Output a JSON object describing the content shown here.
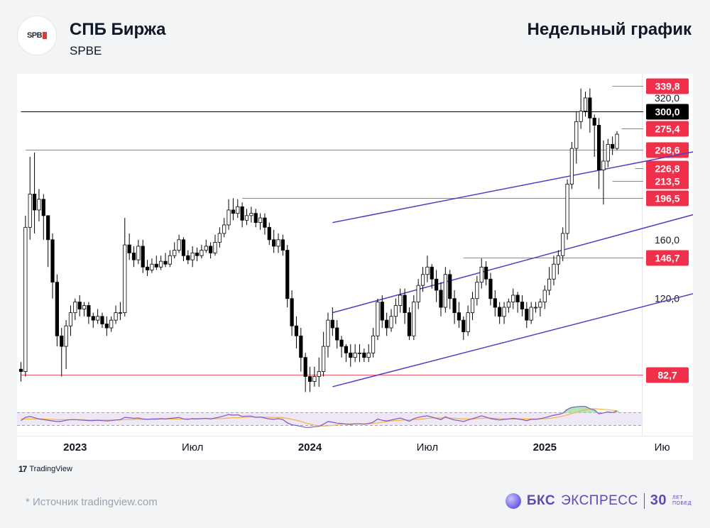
{
  "header": {
    "company": "СПБ Биржа",
    "ticker": "SPBE",
    "period": "Недельный график",
    "logo_text": "SPB"
  },
  "footer": {
    "tv_brand": "TradingView",
    "tv_mark": "17",
    "source": "*  Источник tradingview.com",
    "bcs_bold": "БКС",
    "bcs_rest": "ЭКСПРЕСС",
    "bcs_years": "30",
    "bcs_years_caption_1": "ЛЕТ",
    "bcs_years_caption_2": "ПОБЕД"
  },
  "colors": {
    "level_line": "#f05b70",
    "level_label_bg": "#f0304a",
    "channel": "#5b39c8",
    "rsi_line": "#7e57c2",
    "rsi_ma": "#f5b342",
    "rsi_band": "#ede7f6",
    "candle_up_fill": "#ffffff",
    "candle_down_fill": "#000000"
  },
  "chart_data": {
    "type": "candlestick",
    "yscale": "log",
    "ylim": [
      72,
      360
    ],
    "x_axis_labels": [
      {
        "text": "2023",
        "bold": true,
        "week": 12
      },
      {
        "text": "Июл",
        "bold": false,
        "week": 38
      },
      {
        "text": "2024",
        "bold": true,
        "week": 64
      },
      {
        "text": "Июл",
        "bold": false,
        "week": 90
      },
      {
        "text": "2025",
        "bold": true,
        "week": 116
      },
      {
        "text": "Ию",
        "bold": false,
        "week": 142
      }
    ],
    "y_axis_labels": [
      "320,0",
      "160,0",
      "120,0"
    ],
    "levels": [
      {
        "value": 339.8,
        "label": "339,8",
        "from_week": 131,
        "style": "red"
      },
      {
        "value": 300.0,
        "label": "300,0",
        "from_week": 0,
        "style": "black"
      },
      {
        "value": 275.4,
        "label": "275,4",
        "from_week": 133,
        "style": "red"
      },
      {
        "value": 248.6,
        "label": "248,6",
        "from_week": 1,
        "style": "red"
      },
      {
        "value": 226.8,
        "label": "226,8",
        "from_week": 136,
        "style": "red"
      },
      {
        "value": 213.5,
        "label": "213,5",
        "from_week": 131,
        "style": "red"
      },
      {
        "value": 196.5,
        "label": "196,5",
        "from_week": 49,
        "style": "red"
      },
      {
        "value": 146.7,
        "label": "146,7",
        "from_week": 98,
        "style": "red"
      },
      {
        "value": 82.7,
        "label": "82,7",
        "from_week": 0,
        "style": "red"
      }
    ],
    "channel_lines": [
      {
        "from": [
          69,
          174
        ],
        "to": [
          149,
          246
        ]
      },
      {
        "from": [
          69,
          112
        ],
        "to": [
          149,
          181
        ]
      },
      {
        "from": [
          69,
          78
        ],
        "to": [
          149,
          123
        ]
      }
    ],
    "candles": [
      [
        85,
        84,
        88,
        80
      ],
      [
        84,
        170,
        180,
        82
      ],
      [
        170,
        200,
        240,
        160
      ],
      [
        200,
        185,
        245,
        165
      ],
      [
        185,
        195,
        205,
        175
      ],
      [
        195,
        180,
        200,
        160
      ],
      [
        180,
        160,
        170,
        140
      ],
      [
        160,
        130,
        165,
        120
      ],
      [
        130,
        100,
        135,
        95
      ],
      [
        100,
        95,
        104,
        82
      ],
      [
        95,
        105,
        108,
        85
      ],
      [
        105,
        112,
        116,
        100
      ],
      [
        112,
        118,
        120,
        108
      ],
      [
        118,
        114,
        122,
        110
      ],
      [
        114,
        116,
        118,
        110
      ],
      [
        116,
        110,
        118,
        106
      ],
      [
        110,
        108,
        112,
        104
      ],
      [
        108,
        110,
        114,
        106
      ],
      [
        110,
        106,
        112,
        104
      ],
      [
        106,
        104,
        110,
        100
      ],
      [
        104,
        108,
        110,
        102
      ],
      [
        108,
        112,
        116,
        106
      ],
      [
        112,
        112,
        118,
        108
      ],
      [
        112,
        156,
        178,
        110
      ],
      [
        156,
        150,
        165,
        145
      ],
      [
        150,
        145,
        155,
        140
      ],
      [
        145,
        155,
        160,
        142
      ],
      [
        155,
        140,
        160,
        136
      ],
      [
        140,
        138,
        145,
        134
      ],
      [
        138,
        142,
        146,
        136
      ],
      [
        142,
        140,
        148,
        138
      ],
      [
        140,
        144,
        148,
        138
      ],
      [
        144,
        142,
        150,
        140
      ],
      [
        142,
        148,
        152,
        140
      ],
      [
        148,
        152,
        158,
        146
      ],
      [
        152,
        160,
        164,
        150
      ],
      [
        160,
        148,
        162,
        144
      ],
      [
        148,
        145,
        152,
        142
      ],
      [
        145,
        150,
        155,
        140
      ],
      [
        150,
        148,
        154,
        144
      ],
      [
        148,
        152,
        156,
        146
      ],
      [
        152,
        155,
        160,
        150
      ],
      [
        155,
        150,
        158,
        146
      ],
      [
        150,
        158,
        164,
        148
      ],
      [
        158,
        165,
        170,
        154
      ],
      [
        165,
        172,
        178,
        162
      ],
      [
        172,
        185,
        195,
        168
      ],
      [
        185,
        182,
        196,
        176
      ],
      [
        182,
        188,
        195,
        178
      ],
      [
        188,
        176,
        192,
        170
      ],
      [
        176,
        180,
        186,
        172
      ],
      [
        180,
        182,
        188,
        174
      ],
      [
        182,
        174,
        186,
        170
      ],
      [
        174,
        178,
        182,
        168
      ],
      [
        178,
        170,
        182,
        164
      ],
      [
        170,
        160,
        174,
        156
      ],
      [
        160,
        155,
        168,
        150
      ],
      [
        155,
        160,
        165,
        150
      ],
      [
        160,
        152,
        164,
        148
      ],
      [
        152,
        120,
        156,
        115
      ],
      [
        120,
        105,
        125,
        100
      ],
      [
        105,
        100,
        110,
        94
      ],
      [
        100,
        90,
        104,
        84
      ],
      [
        90,
        82,
        92,
        76
      ],
      [
        82,
        80,
        86,
        76
      ],
      [
        80,
        82,
        86,
        78
      ],
      [
        82,
        84,
        90,
        78
      ],
      [
        84,
        95,
        102,
        82
      ],
      [
        95,
        108,
        112,
        90
      ],
      [
        108,
        104,
        115,
        100
      ],
      [
        104,
        98,
        108,
        94
      ],
      [
        98,
        95,
        100,
        90
      ],
      [
        95,
        92,
        96,
        88
      ],
      [
        92,
        90,
        96,
        86
      ],
      [
        90,
        92,
        96,
        88
      ],
      [
        92,
        92,
        96,
        88
      ],
      [
        92,
        90,
        94,
        88
      ],
      [
        90,
        92,
        96,
        88
      ],
      [
        92,
        100,
        104,
        90
      ],
      [
        100,
        118,
        120,
        98
      ],
      [
        118,
        108,
        122,
        104
      ],
      [
        108,
        104,
        112,
        100
      ],
      [
        104,
        110,
        114,
        102
      ],
      [
        110,
        116,
        120,
        106
      ],
      [
        116,
        122,
        126,
        112
      ],
      [
        122,
        112,
        126,
        106
      ],
      [
        112,
        100,
        115,
        98
      ],
      [
        100,
        118,
        122,
        98
      ],
      [
        118,
        128,
        132,
        114
      ],
      [
        128,
        135,
        140,
        124
      ],
      [
        135,
        140,
        148,
        130
      ],
      [
        140,
        132,
        142,
        126
      ],
      [
        132,
        125,
        138,
        118
      ],
      [
        125,
        115,
        130,
        110
      ],
      [
        115,
        135,
        140,
        112
      ],
      [
        135,
        120,
        138,
        114
      ],
      [
        120,
        112,
        125,
        106
      ],
      [
        112,
        108,
        118,
        104
      ],
      [
        108,
        102,
        110,
        98
      ],
      [
        102,
        112,
        116,
        100
      ],
      [
        112,
        120,
        124,
        108
      ],
      [
        120,
        130,
        134,
        116
      ],
      [
        130,
        140,
        146,
        126
      ],
      [
        140,
        132,
        144,
        128
      ],
      [
        132,
        120,
        136,
        116
      ],
      [
        120,
        115,
        125,
        110
      ],
      [
        115,
        110,
        118,
        106
      ],
      [
        110,
        115,
        118,
        106
      ],
      [
        115,
        118,
        120,
        112
      ],
      [
        118,
        122,
        126,
        114
      ],
      [
        122,
        118,
        124,
        112
      ],
      [
        118,
        114,
        122,
        110
      ],
      [
        114,
        108,
        118,
        104
      ],
      [
        108,
        115,
        118,
        106
      ],
      [
        115,
        115,
        118,
        112
      ],
      [
        115,
        118,
        120,
        110
      ],
      [
        118,
        125,
        128,
        114
      ],
      [
        125,
        132,
        140,
        122
      ],
      [
        132,
        142,
        148,
        128
      ],
      [
        142,
        148,
        152,
        135
      ],
      [
        148,
        165,
        170,
        144
      ],
      [
        165,
        210,
        215,
        160
      ],
      [
        210,
        250,
        258,
        205
      ],
      [
        250,
        285,
        300,
        232
      ],
      [
        285,
        300,
        335,
        275
      ],
      [
        300,
        320,
        330,
        292
      ],
      [
        320,
        290,
        335,
        270
      ],
      [
        290,
        280,
        295,
        240
      ],
      [
        280,
        225,
        290,
        205
      ],
      [
        225,
        235,
        260,
        190
      ],
      [
        235,
        255,
        262,
        228
      ],
      [
        255,
        250,
        265,
        242
      ],
      [
        250,
        268,
        272,
        248
      ]
    ],
    "rsi": {
      "band": [
        30,
        70
      ],
      "ylim": [
        20,
        95
      ],
      "values": [
        45,
        55,
        58,
        54,
        50,
        48,
        46,
        44,
        42,
        43,
        46,
        48,
        48,
        47,
        46,
        45,
        45,
        46,
        45,
        44,
        45,
        47,
        48,
        55,
        54,
        52,
        53,
        50,
        49,
        50,
        50,
        51,
        50,
        52,
        53,
        55,
        50,
        49,
        51,
        50,
        51,
        52,
        50,
        53,
        56,
        60,
        64,
        62,
        63,
        58,
        59,
        59,
        55,
        56,
        53,
        50,
        49,
        51,
        48,
        38,
        32,
        30,
        27,
        24,
        24,
        26,
        27,
        34,
        42,
        40,
        37,
        36,
        34,
        33,
        35,
        35,
        34,
        36,
        40,
        50,
        46,
        44,
        47,
        50,
        53,
        48,
        43,
        51,
        55,
        58,
        60,
        56,
        52,
        48,
        57,
        51,
        47,
        45,
        42,
        47,
        51,
        55,
        60,
        56,
        51,
        49,
        47,
        49,
        50,
        52,
        50,
        48,
        45,
        49,
        49,
        51,
        54,
        58,
        62,
        64,
        68,
        80,
        86,
        88,
        89,
        89,
        82,
        78,
        66,
        69,
        72,
        70,
        75
      ],
      "ma": [
        50,
        50,
        50,
        50,
        50,
        50,
        49,
        49,
        48,
        48,
        48,
        48,
        48,
        48,
        48,
        47,
        47,
        47,
        47,
        47,
        47,
        47,
        47,
        48,
        48,
        48,
        49,
        49,
        49,
        49,
        49,
        50,
        50,
        50,
        50,
        50,
        50,
        50,
        50,
        51,
        51,
        51,
        51,
        51,
        51,
        52,
        53,
        54,
        54,
        55,
        55,
        56,
        56,
        56,
        56,
        55,
        55,
        55,
        54,
        52,
        49,
        46,
        42,
        38,
        34,
        31,
        29,
        28,
        29,
        30,
        32,
        34,
        35,
        35,
        35,
        35,
        35,
        35,
        36,
        38,
        40,
        42,
        44,
        45,
        46,
        47,
        47,
        48,
        49,
        50,
        52,
        53,
        53,
        53,
        54,
        53,
        52,
        51,
        50,
        50,
        50,
        51,
        52,
        53,
        53,
        52,
        51,
        50,
        50,
        50,
        50,
        50,
        50,
        50,
        50,
        50,
        51,
        52,
        54,
        56,
        59,
        63,
        67,
        71,
        75,
        79,
        81,
        82,
        81,
        80,
        79,
        77,
        76
      ]
    }
  }
}
